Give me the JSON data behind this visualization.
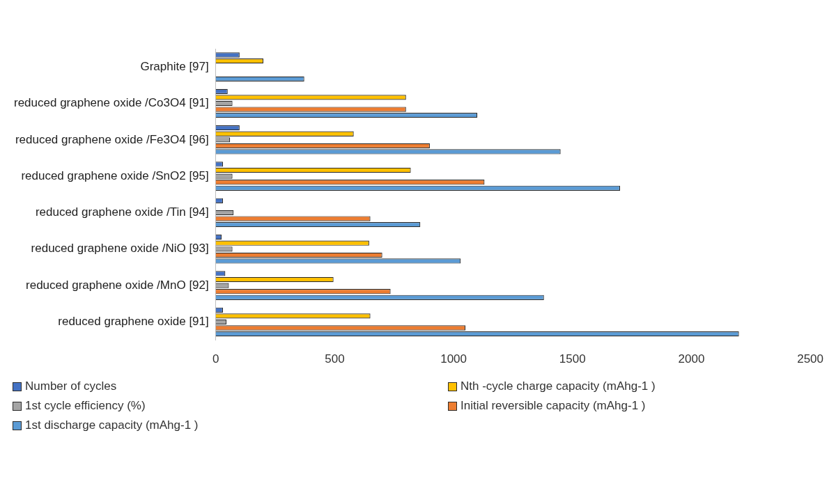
{
  "chart_data": {
    "type": "bar",
    "orientation": "horizontal",
    "categories": [
      "Graphite [97]",
      "reduced graphene oxide /Co3O4 [91]",
      "reduced graphene oxide /Fe3O4 [96]",
      "reduced graphene oxide /SnO2 [95]",
      "reduced graphene oxide /Tin [94]",
      "reduced graphene oxide /NiO [93]",
      "reduced graphene oxide /MnO [92]",
      "reduced graphene oxide [91]"
    ],
    "series": [
      {
        "name": "Number of cycles",
        "color": "#4472c4",
        "values": [
          100,
          50,
          100,
          30,
          30,
          25,
          40,
          30
        ]
      },
      {
        "name": "Nth -cycle charge capacity (mAhg-1 )",
        "color": "#ffc000",
        "values": [
          200,
          800,
          580,
          820,
          null,
          645,
          495,
          650
        ]
      },
      {
        "name": "1st cycle efficiency (%)",
        "color": "#a5a5a5",
        "values": [
          null,
          70,
          60,
          70,
          75,
          70,
          55,
          45
        ]
      },
      {
        "name": "Initial reversible capacity (mAhg-1 )",
        "color": "#ed7d31",
        "values": [
          null,
          800,
          900,
          1130,
          650,
          700,
          735,
          1050
        ]
      },
      {
        "name": "1st discharge capacity (mAhg-1 )",
        "color": "#5b9bd5",
        "values": [
          372,
          1100,
          1450,
          1700,
          860,
          1030,
          1380,
          2200
        ]
      }
    ],
    "xlim": [
      0,
      2500
    ],
    "xticks": [
      0,
      500,
      1000,
      1500,
      2000,
      2500
    ],
    "grid": false,
    "legend": "bottom"
  }
}
